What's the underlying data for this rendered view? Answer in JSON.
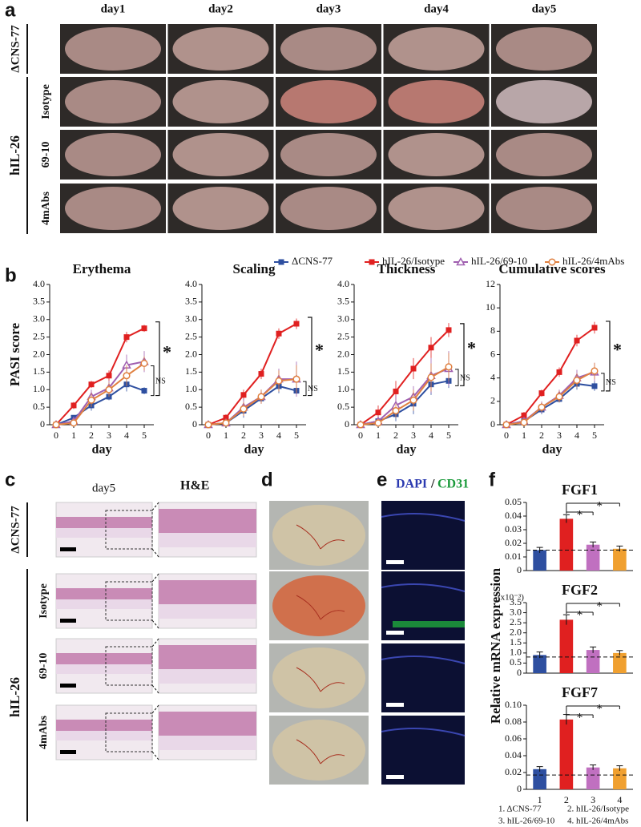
{
  "panel_a": {
    "label": "a",
    "columns": [
      "day1",
      "day2",
      "day3",
      "day4",
      "day5"
    ],
    "control": "ΔCNS-77",
    "group": "hIL-26",
    "rows": [
      "Isotype",
      "69-10",
      "4mAbs"
    ]
  },
  "panel_b": {
    "label": "b"
  },
  "panel_c": {
    "label": "c",
    "subtitle": "day5",
    "title": "H&E",
    "control": "ΔCNS-77",
    "group": "hIL-26",
    "rows": [
      "Isotype",
      "69-10",
      "4mAbs"
    ]
  },
  "panel_d": {
    "label": "d"
  },
  "panel_e": {
    "label": "e",
    "title_parts": [
      "DAPI",
      "/",
      "CD31"
    ]
  },
  "panel_f": {
    "label": "f",
    "ylabel": "Relative mRNA expression",
    "footnotes": [
      "1. ΔCNS-77",
      "2. hIL-26/Isotype",
      "3. hIL-26/69-10",
      "4. hIL-26/4mAbs"
    ]
  },
  "chart_data": [
    {
      "type": "line",
      "title": "Erythema",
      "xlabel": "day",
      "ylabel": "PASI score",
      "x": [
        0,
        1,
        2,
        3,
        4,
        5
      ],
      "xlim": [
        0,
        5
      ],
      "xticks": [
        0,
        1,
        2,
        3,
        4,
        5
      ],
      "ylim": [
        0,
        4
      ],
      "yticks": [
        0,
        0.5,
        {
          "value": 1,
          "label": "1.0"
        },
        1.5,
        {
          "value": 2,
          "label": "2.0"
        },
        2.5,
        {
          "value": 3,
          "label": "3.0"
        },
        3.5,
        {
          "value": 4,
          "label": "4.0"
        }
      ],
      "annotations": [
        "*",
        "NS"
      ],
      "series": [
        {
          "name": "ΔCNS-77",
          "color": "#2e4fa0",
          "marker": "square",
          "values": [
            0,
            0.2,
            0.55,
            0.8,
            1.15,
            0.97
          ],
          "errors": [
            0,
            0.05,
            0.15,
            0.1,
            0.2,
            0.1
          ]
        },
        {
          "name": "hIL-26/Isotype",
          "color": "#e02020",
          "marker": "square",
          "values": [
            0,
            0.55,
            1.15,
            1.4,
            2.5,
            2.75
          ],
          "errors": [
            0,
            0.1,
            0.1,
            0.15,
            0.15,
            0.1
          ]
        },
        {
          "name": "hIL-26/69-10",
          "color": "#a060b0",
          "marker": "triangle",
          "values": [
            0,
            0.1,
            0.8,
            1.05,
            1.7,
            1.8
          ],
          "errors": [
            0,
            0.1,
            0.2,
            0.2,
            0.3,
            0.3
          ]
        },
        {
          "name": "hIL-26/4mAbs",
          "color": "#e08040",
          "marker": "circle",
          "values": [
            0,
            0.05,
            0.7,
            1.0,
            1.4,
            1.75
          ],
          "errors": [
            0,
            0.05,
            0.2,
            0.2,
            0.3,
            0.2
          ]
        }
      ]
    },
    {
      "type": "line",
      "title": "Scaling",
      "xlabel": "day",
      "x": [
        0,
        1,
        2,
        3,
        4,
        5
      ],
      "xlim": [
        0,
        5
      ],
      "xticks": [
        0,
        1,
        2,
        3,
        4,
        5
      ],
      "ylim": [
        0,
        4
      ],
      "yticks": [
        0,
        0.5,
        {
          "value": 1,
          "label": "1.0"
        },
        1.5,
        {
          "value": 2,
          "label": "2.0"
        },
        2.5,
        {
          "value": 3,
          "label": "3.0"
        },
        3.5,
        {
          "value": 4,
          "label": "4.0"
        }
      ],
      "annotations": [
        "*",
        "NS"
      ],
      "series": [
        {
          "color": "#2e4fa0",
          "marker": "square",
          "values": [
            0,
            0.05,
            0.4,
            0.75,
            1.1,
            0.97
          ],
          "errors": [
            0,
            0.05,
            0.2,
            0.1,
            0.2,
            0.1
          ]
        },
        {
          "color": "#e02020",
          "marker": "square",
          "values": [
            0,
            0.2,
            0.85,
            1.45,
            2.6,
            2.88
          ],
          "errors": [
            0,
            0.1,
            0.15,
            0.15,
            0.15,
            0.15
          ]
        },
        {
          "color": "#a060b0",
          "marker": "triangle",
          "values": [
            0,
            0.05,
            0.5,
            0.8,
            1.3,
            1.3
          ],
          "errors": [
            0,
            0.1,
            0.25,
            0.2,
            0.3,
            0.5
          ]
        },
        {
          "color": "#e08040",
          "marker": "circle",
          "values": [
            0,
            0.05,
            0.45,
            0.8,
            1.25,
            1.3
          ],
          "errors": [
            0,
            0.05,
            0.2,
            0.2,
            0.3,
            0.4
          ]
        }
      ]
    },
    {
      "type": "line",
      "title": "Thickness",
      "xlabel": "day",
      "x": [
        0,
        1,
        2,
        3,
        4,
        5
      ],
      "xlim": [
        0,
        5
      ],
      "xticks": [
        0,
        1,
        2,
        3,
        4,
        5
      ],
      "ylim": [
        0,
        4
      ],
      "yticks": [
        0,
        0.5,
        {
          "value": 1,
          "label": "1.0"
        },
        1.5,
        {
          "value": 2,
          "label": "2.0"
        },
        2.5,
        {
          "value": 3,
          "label": "3.0"
        },
        3.5,
        {
          "value": 4,
          "label": "4.0"
        }
      ],
      "annotations": [
        "*",
        "NS"
      ],
      "series": [
        {
          "color": "#2e4fa0",
          "marker": "square",
          "values": [
            0,
            0.1,
            0.3,
            0.6,
            1.15,
            1.25
          ],
          "errors": [
            0,
            0.1,
            0.2,
            0.3,
            0.3,
            0.2
          ]
        },
        {
          "color": "#e02020",
          "marker": "square",
          "values": [
            0,
            0.35,
            0.95,
            1.6,
            2.2,
            2.7
          ],
          "errors": [
            0,
            0.2,
            0.3,
            0.3,
            0.3,
            0.2
          ]
        },
        {
          "color": "#a060b0",
          "marker": "triangle",
          "values": [
            0,
            0.1,
            0.55,
            0.8,
            1.4,
            1.6
          ],
          "errors": [
            0,
            0.1,
            0.3,
            0.3,
            0.5,
            0.5
          ]
        },
        {
          "color": "#e08040",
          "marker": "circle",
          "values": [
            0,
            0.05,
            0.4,
            0.7,
            1.35,
            1.65
          ],
          "errors": [
            0,
            0.1,
            0.2,
            0.3,
            0.4,
            0.4
          ]
        }
      ]
    },
    {
      "type": "line",
      "title": "Cumulative scores",
      "xlabel": "day",
      "x": [
        0,
        1,
        2,
        3,
        4,
        5
      ],
      "xlim": [
        0,
        5
      ],
      "xticks": [
        0,
        1,
        2,
        3,
        4,
        5
      ],
      "ylim": [
        0,
        12
      ],
      "yticks": [
        0,
        2,
        4,
        6,
        8,
        10,
        12
      ],
      "annotations": [
        "*",
        "NS"
      ],
      "series": [
        {
          "color": "#2e4fa0",
          "marker": "square",
          "values": [
            0,
            0.3,
            1.3,
            2.2,
            3.5,
            3.3
          ],
          "errors": [
            0,
            0.2,
            0.4,
            0.3,
            0.5,
            0.4
          ]
        },
        {
          "color": "#e02020",
          "marker": "square",
          "values": [
            0,
            0.8,
            2.7,
            4.5,
            7.2,
            8.3
          ],
          "errors": [
            0,
            0.3,
            0.3,
            0.4,
            0.5,
            0.5
          ]
        },
        {
          "color": "#a060b0",
          "marker": "triangle",
          "values": [
            0,
            0.3,
            1.5,
            2.5,
            4.0,
            4.5
          ],
          "errors": [
            0,
            0.3,
            0.5,
            0.5,
            0.7,
            0.8
          ]
        },
        {
          "color": "#e08040",
          "marker": "circle",
          "values": [
            0,
            0.2,
            1.5,
            2.4,
            3.8,
            4.6
          ],
          "errors": [
            0,
            0.2,
            0.4,
            0.5,
            0.6,
            0.7
          ]
        }
      ]
    },
    {
      "type": "bar",
      "title": "FGF1",
      "colors": [
        "#2e4fa0",
        "#e02020",
        "#c070c0",
        "#f0a030"
      ],
      "values": [
        0.015,
        0.038,
        0.019,
        0.016
      ],
      "errors": [
        0.002,
        0.003,
        0.002,
        0.002
      ],
      "ref_line": 0.015,
      "ylim": [
        0,
        0.05
      ],
      "yticks": [
        0,
        0.01,
        0.02,
        0.03,
        0.04,
        0.05
      ],
      "annotations": [
        "*",
        "*"
      ]
    },
    {
      "type": "bar",
      "title": "FGF2",
      "unit_note": "(x10⁻³)",
      "colors": [
        "#2e4fa0",
        "#e02020",
        "#c070c0",
        "#f0a030"
      ],
      "values": [
        0.9,
        2.65,
        1.15,
        1.0
      ],
      "errors": [
        0.15,
        0.25,
        0.15,
        0.12
      ],
      "ref_line": 0.8,
      "ylim": [
        0,
        3.5
      ],
      "yticks": [
        0,
        0.5,
        {
          "value": 1,
          "label": "1.0"
        },
        1.5,
        {
          "value": 2,
          "label": "2.0"
        },
        2.5,
        {
          "value": 3,
          "label": "3.0"
        },
        3.5
      ],
      "annotations": [
        "*",
        "*"
      ]
    },
    {
      "type": "bar",
      "title": "FGF7",
      "categories": [
        "1",
        "2",
        "3",
        "4"
      ],
      "colors": [
        "#2e4fa0",
        "#e02020",
        "#c070c0",
        "#f0a030"
      ],
      "values": [
        0.024,
        0.083,
        0.026,
        0.025
      ],
      "errors": [
        0.003,
        0.006,
        0.003,
        0.003
      ],
      "ref_line": 0.017,
      "ylim": [
        0,
        0.1
      ],
      "yticks": [
        0,
        0.02,
        0.04,
        0.06,
        0.08,
        {
          "value": 0.1,
          "label": "0.10"
        }
      ],
      "annotations": [
        "*",
        "*"
      ]
    }
  ]
}
